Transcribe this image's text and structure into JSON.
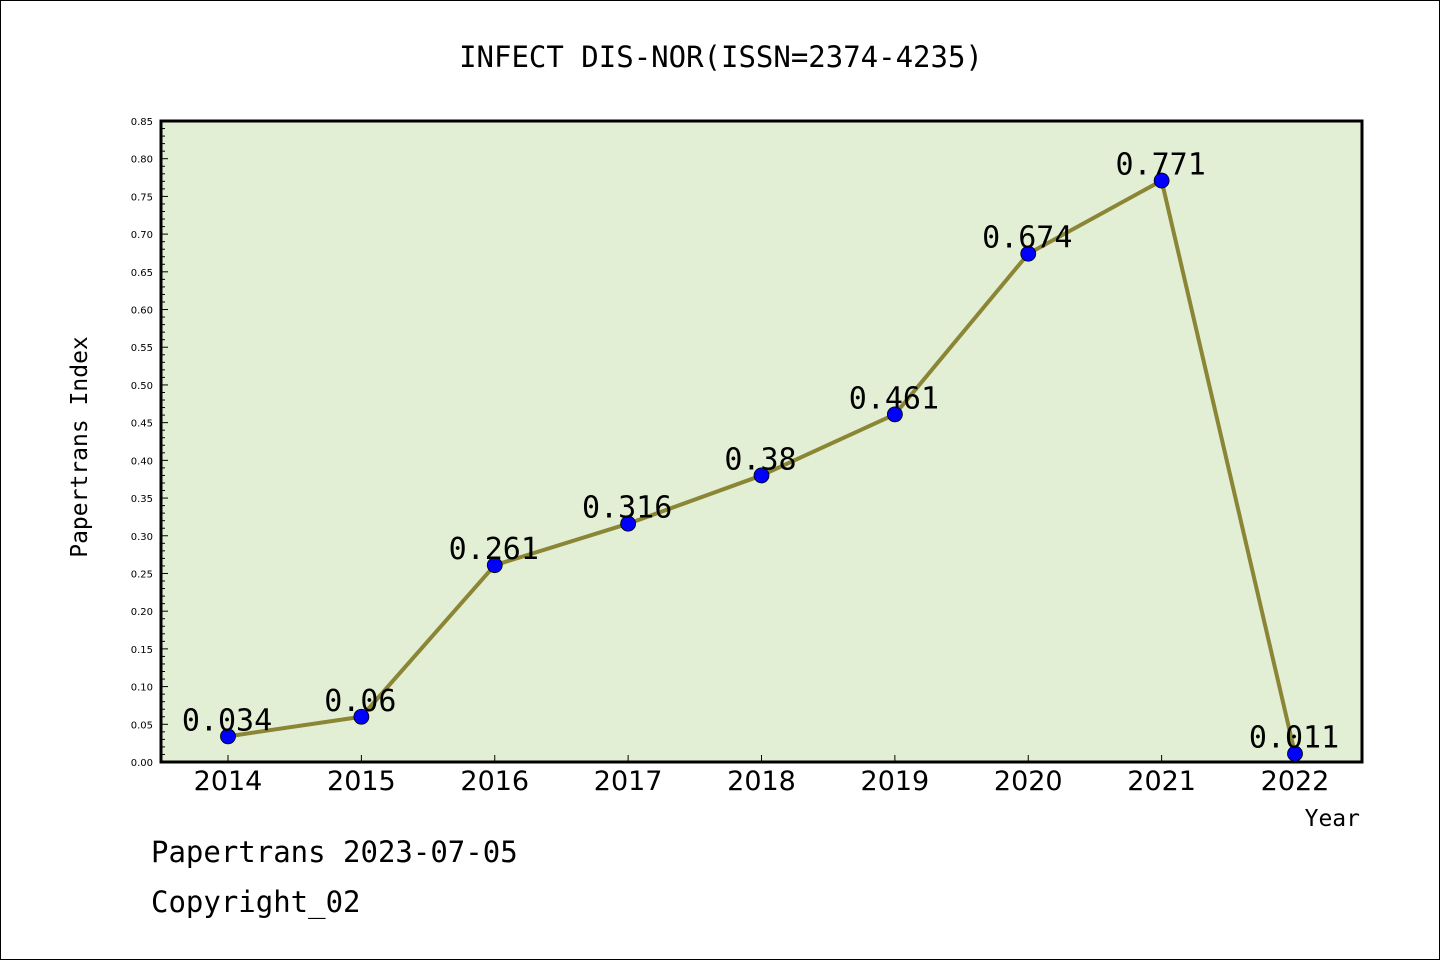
{
  "chart_data": {
    "type": "line",
    "title": "INFECT DIS-NOR(ISSN=2374-4235)",
    "xlabel": "Year",
    "ylabel": "Papertrans Index",
    "categories": [
      "2014",
      "2015",
      "2016",
      "2017",
      "2018",
      "2019",
      "2020",
      "2021",
      "2022"
    ],
    "values": [
      0.034,
      0.06,
      0.261,
      0.316,
      0.38,
      0.461,
      0.674,
      0.771,
      0.011
    ],
    "data_labels": [
      "0.034",
      "0.06",
      "0.261",
      "0.316",
      "0.38",
      "0.461",
      "0.674",
      "0.771",
      "0.011"
    ],
    "ylim": [
      0,
      0.85
    ],
    "yticks": [
      "0.00",
      "0.05",
      "0.10",
      "0.15",
      "0.20",
      "0.25",
      "0.30",
      "0.35",
      "0.40",
      "0.45",
      "0.50",
      "0.55",
      "0.60",
      "0.65",
      "0.70",
      "0.75",
      "0.80",
      "0.85"
    ],
    "grid": false,
    "colors": {
      "plot_background": "#e2efd4",
      "line": "#8b8536",
      "marker": "#0000ff"
    }
  },
  "footer": {
    "date_text": "Papertrans 2023-07-05",
    "copyright_text": "Copyright_02"
  }
}
